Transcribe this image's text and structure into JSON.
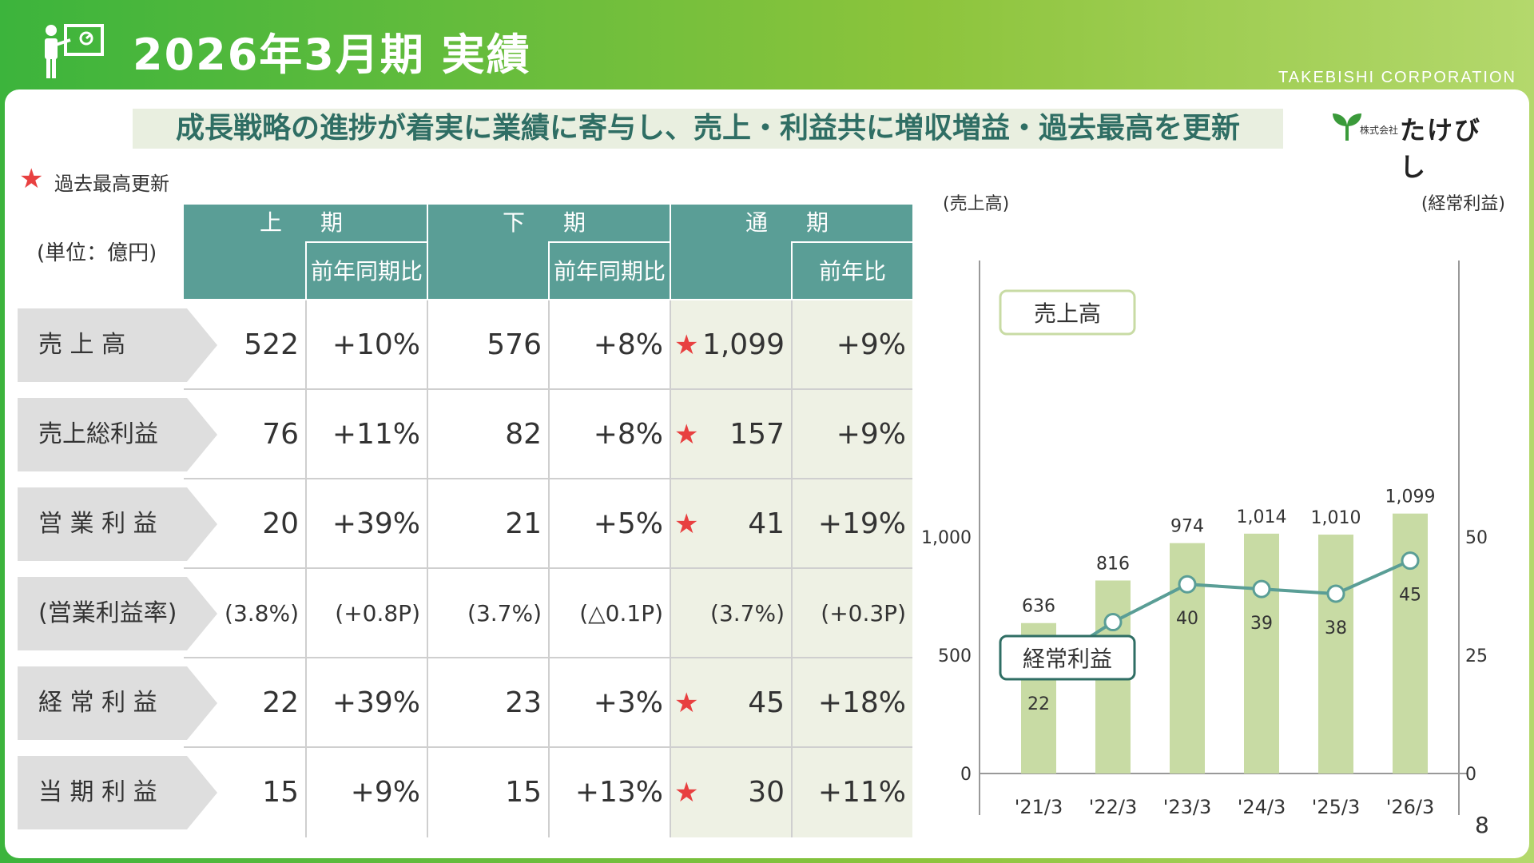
{
  "header": {
    "title": "2026年3月期 実績",
    "corporation": "TAKEBISHI CORPORATION",
    "icon": "presenter-board-icon"
  },
  "headline": "成長戦略の進捗が着実に業績に寄与し、売上・利益共に増収増益・過去最高を更新",
  "logo": {
    "prefix": "株式会社",
    "name": "たけびし",
    "icon": "sprout-logo-icon"
  },
  "legend": {
    "star": "★",
    "text": "過去最高更新"
  },
  "table": {
    "unit": "(単位：億円)",
    "groups": [
      "上　期",
      "下　期",
      "通　期"
    ],
    "subheads": [
      "前年同期比",
      "前年同期比",
      "前年比"
    ],
    "rows": [
      {
        "label": "売 上 高",
        "h1": "522",
        "h1_yoy": "+10%",
        "h2": "576",
        "h2_yoy": "+8%",
        "fy": "1,099",
        "fy_yoy": "+9%",
        "record": true
      },
      {
        "label": "売上総利益",
        "h1": "76",
        "h1_yoy": "+11%",
        "h2": "82",
        "h2_yoy": "+8%",
        "fy": "157",
        "fy_yoy": "+9%",
        "record": true
      },
      {
        "label": "営 業 利 益",
        "h1": "20",
        "h1_yoy": "+39%",
        "h2": "21",
        "h2_yoy": "+5%",
        "fy": "41",
        "fy_yoy": "+19%",
        "record": true
      },
      {
        "label": "(営業利益率)",
        "h1": "(3.8%)",
        "h1_yoy": "(+0.8P)",
        "h2": "(3.7%)",
        "h2_yoy": "(△0.1P)",
        "fy": "(3.7%)",
        "fy_yoy": "(+0.3P)",
        "record": false,
        "small": true
      },
      {
        "label": "経 常 利 益",
        "h1": "22",
        "h1_yoy": "+39%",
        "h2": "23",
        "h2_yoy": "+3%",
        "fy": "45",
        "fy_yoy": "+18%",
        "record": true
      },
      {
        "label": "当 期 利 益",
        "h1": "15",
        "h1_yoy": "+9%",
        "h2": "15",
        "h2_yoy": "+13%",
        "fy": "30",
        "fy_yoy": "+11%",
        "record": true
      }
    ]
  },
  "chart_data": {
    "type": "bar",
    "categories": [
      "'21/3",
      "'22/3",
      "'23/3",
      "'24/3",
      "'25/3",
      "'26/3"
    ],
    "series": [
      {
        "name": "売上高",
        "type": "bar",
        "axis": "left",
        "values": [
          636,
          816,
          974,
          1014,
          1010,
          1099
        ],
        "labels": [
          "636",
          "816",
          "974",
          "1,014",
          "1,010",
          "1,099"
        ]
      },
      {
        "name": "経常利益",
        "type": "line",
        "axis": "right",
        "values": [
          22,
          32,
          40,
          39,
          38,
          45
        ]
      }
    ],
    "ylabel_left": "(売上高)",
    "ylabel_right": "(経常利益)",
    "ylim_left": [
      0,
      1100
    ],
    "ylim_right": [
      0,
      55
    ],
    "yticks_left": [
      {
        "value": 0,
        "label": "0"
      },
      {
        "value": 500,
        "label": "500"
      },
      {
        "value": 1000,
        "label": "1,000"
      }
    ],
    "yticks_right": [
      {
        "value": 0,
        "label": "0"
      },
      {
        "value": 25,
        "label": "25"
      },
      {
        "value": 50,
        "label": "50"
      }
    ],
    "colors": {
      "bar": "#c8dba4",
      "line": "#5a9e96"
    }
  },
  "page_number": "8",
  "colors": {
    "table_header": "#5a9e96",
    "total_bg": "#eef1e4",
    "star": "#e84040",
    "label_bg": "#dedede"
  }
}
